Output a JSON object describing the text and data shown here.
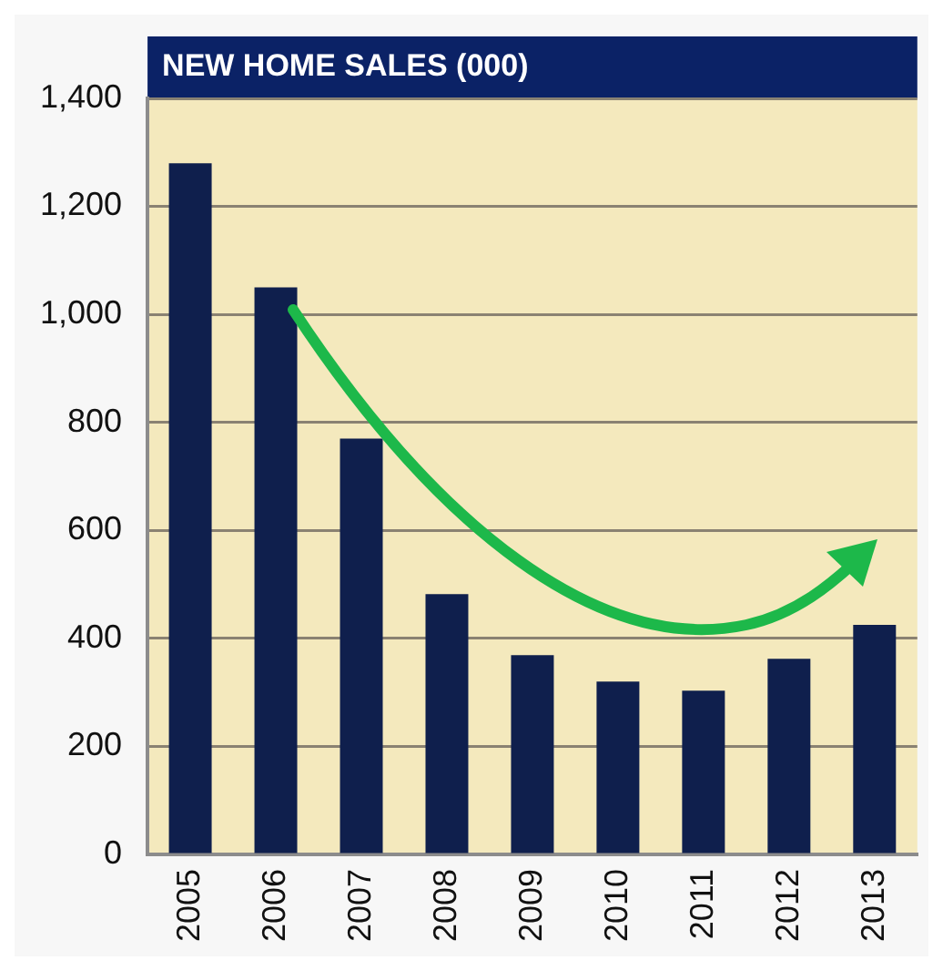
{
  "chart_data": {
    "type": "bar",
    "title": "NEW HOME SALES (000)",
    "categories": [
      "2005",
      "2006",
      "2007",
      "2008",
      "2009",
      "2010",
      "2011",
      "2012",
      "2013"
    ],
    "values": [
      1280,
      1050,
      770,
      482,
      369,
      320,
      303,
      362,
      425
    ],
    "color": "#0f1f4d",
    "ylim": [
      0,
      1400
    ],
    "yticks": [
      0,
      200,
      400,
      600,
      800,
      {
        "value": 1000,
        "label": "1,000"
      },
      {
        "value": 1200,
        "label": "1,200"
      },
      {
        "value": 1400,
        "label": "1,400"
      }
    ],
    "grid": "y"
  }
}
